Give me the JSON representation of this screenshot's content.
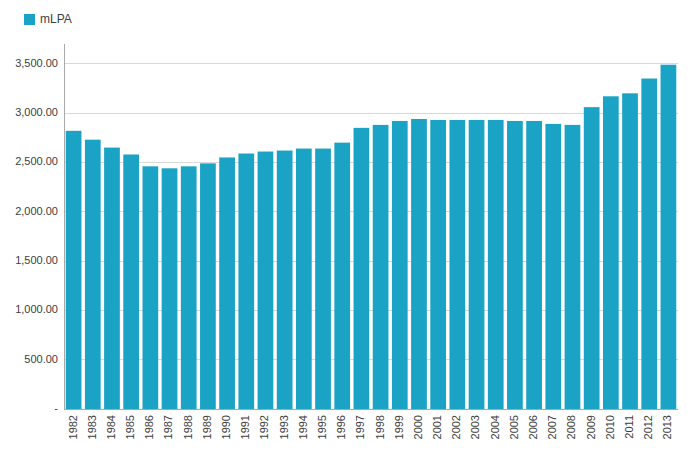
{
  "chart_data": {
    "type": "bar",
    "categories": [
      "1982",
      "1983",
      "1984",
      "1985",
      "1986",
      "1987",
      "1988",
      "1989",
      "1990",
      "1991",
      "1992",
      "1993",
      "1994",
      "1995",
      "1996",
      "1997",
      "1998",
      "1999",
      "2000",
      "2001",
      "2002",
      "2003",
      "2004",
      "2005",
      "2006",
      "2007",
      "2008",
      "2009",
      "2010",
      "2011",
      "2012",
      "2013"
    ],
    "series": [
      {
        "name": "mLPA",
        "color": "#1ba3c6",
        "values": [
          2820,
          2730,
          2650,
          2580,
          2460,
          2440,
          2460,
          2490,
          2550,
          2590,
          2610,
          2620,
          2640,
          2640,
          2700,
          2850,
          2880,
          2920,
          2940,
          2930,
          2930,
          2930,
          2930,
          2920,
          2920,
          2890,
          2880,
          3060,
          3170,
          3200,
          3350,
          3490
        ]
      }
    ],
    "ylim": [
      0,
      3700
    ],
    "yticks": [
      {
        "value": 0,
        "label": "-"
      },
      {
        "value": 500,
        "label": "500.00"
      },
      {
        "value": 1000,
        "label": "1,000.00"
      },
      {
        "value": 1500,
        "label": "1,500.00"
      },
      {
        "value": 2000,
        "label": "2,000.00"
      },
      {
        "value": 2500,
        "label": "2,500.00"
      },
      {
        "value": 3000,
        "label": "3,000.00"
      },
      {
        "value": 3500,
        "label": "3,500.00"
      }
    ],
    "grid": true,
    "legend": "upper left"
  }
}
